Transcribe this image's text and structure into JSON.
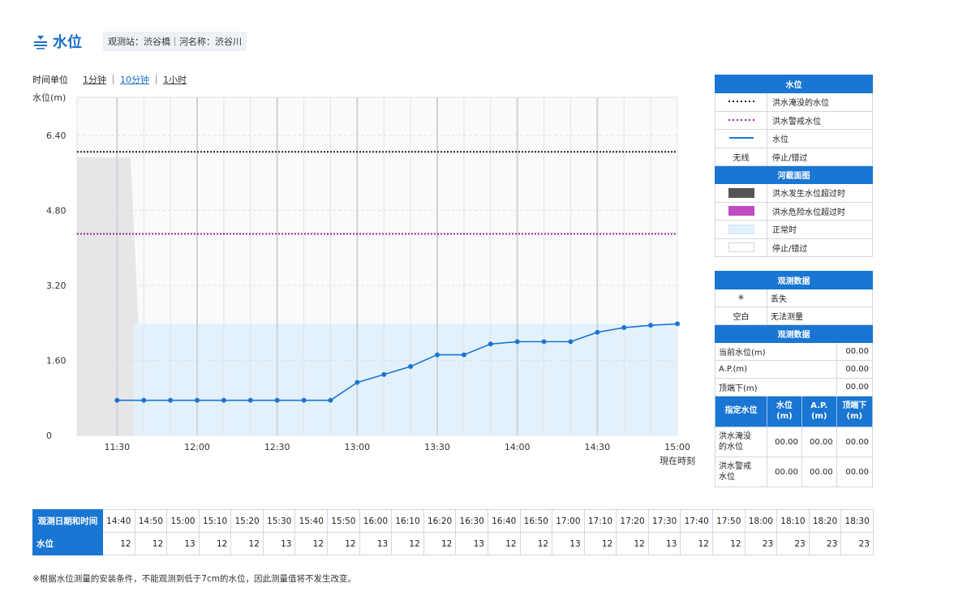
{
  "header": {
    "title": "水位",
    "station_info": "观测站：渋谷橋｜河名称：渋谷川"
  },
  "time_unit": {
    "label": "时间单位",
    "options": [
      "1分钟",
      "10分钟",
      "1小时"
    ],
    "active": 1
  },
  "chart_data": {
    "type": "line",
    "ylabel": "水位(m)",
    "ylim": [
      0,
      6.4
    ],
    "yticks": [
      0,
      1.6,
      3.2,
      4.8,
      6.4
    ],
    "ytick_labels": [
      "0",
      "1.60",
      "3.20",
      "4.80",
      "6.40"
    ],
    "xticks": [
      "11:30",
      "12:00",
      "12:30",
      "13:00",
      "13:30",
      "14:00",
      "14:30",
      "15:00"
    ],
    "xnote": "現在時刻",
    "x": [
      "11:30",
      "11:40",
      "11:50",
      "12:00",
      "12:10",
      "12:20",
      "12:30",
      "12:40",
      "12:50",
      "13:00",
      "13:10",
      "13:20",
      "13:30",
      "13:40",
      "13:50",
      "14:00",
      "14:10",
      "14:20",
      "14:30",
      "14:40",
      "14:50",
      "15:00"
    ],
    "series": [
      {
        "name": "水位",
        "color": "#1976d2",
        "values": [
          0.75,
          0.75,
          0.75,
          0.75,
          0.75,
          0.75,
          0.75,
          0.75,
          0.75,
          1.13,
          1.3,
          1.47,
          1.72,
          1.72,
          1.95,
          2.0,
          2.0,
          2.0,
          2.2,
          2.3,
          2.35,
          2.38
        ]
      }
    ],
    "flood_inundation_level": 6.05,
    "flood_warning_level": 4.3,
    "section_area_top": 2.38,
    "gray_section": {
      "from": "11:20",
      "to": "11:40",
      "level": 5.93
    },
    "grid": true
  },
  "legend": {
    "water_level_header": "水位",
    "lines": [
      {
        "label": "洪水淹没的水位",
        "color": "#222222",
        "style": "dotted"
      },
      {
        "label": "洪水警戒水位",
        "color": "#a0249c",
        "style": "dotted"
      },
      {
        "label": "水位",
        "color": "#1976d2",
        "style": "solid"
      },
      {
        "symbol": "无线",
        "label": "停止/错过"
      }
    ],
    "section_header": "河截面图",
    "sections": [
      {
        "label": "洪水发生水位超过时",
        "color": "#555555"
      },
      {
        "label": "洪水危险水位超过时",
        "color": "#c04ac0"
      },
      {
        "label": "正常时",
        "color": "#e3f1fd"
      },
      {
        "label": "停止/错过",
        "color": "#ffffff"
      }
    ]
  },
  "obs_panel": {
    "header": "观测数据",
    "symbols": [
      {
        "symbol": "✳",
        "label": "丢失"
      },
      {
        "symbol": "空白",
        "label": "无法测量"
      }
    ],
    "header2": "观测数据",
    "rows": [
      {
        "label": "当前水位(m)",
        "value": "00.00"
      },
      {
        "label": "A.P.(m)",
        "value": "00.00"
      },
      {
        "label": "顶端下(m)",
        "value": "00.00"
      }
    ],
    "spec_headers": [
      "指定水位",
      "水位\n(m)",
      "A.P.\n(m)",
      "顶端下\n(m)"
    ],
    "spec_rows": [
      {
        "label": "洪水淹没\n的水位",
        "values": [
          "00.00",
          "00.00",
          "00.00"
        ]
      },
      {
        "label": "洪水警戒\n水位",
        "values": [
          "00.00",
          "00.00",
          "00.00"
        ]
      }
    ]
  },
  "bottom_table": {
    "time_label": "观测日期和时间",
    "value_label": "水位",
    "times": [
      "14:40",
      "14:50",
      "15:00",
      "15:10",
      "15:20",
      "15:30",
      "15:40",
      "15:50",
      "16:00",
      "16:10",
      "16:20",
      "16:30",
      "16:40",
      "16:50",
      "17:00",
      "17:10",
      "17:20",
      "17:30",
      "17:40",
      "17:50",
      "18:00",
      "18:10",
      "18:20",
      "18:30"
    ],
    "values": [
      "12",
      "12",
      "13",
      "12",
      "12",
      "13",
      "12",
      "12",
      "13",
      "12",
      "12",
      "13",
      "12",
      "12",
      "13",
      "12",
      "12",
      "13",
      "12",
      "12",
      "23",
      "23",
      "23",
      "23"
    ]
  },
  "note": "※根据水位测量的安装条件，不能观测到低于7cm的水位，因此测量值将不发生改变。"
}
